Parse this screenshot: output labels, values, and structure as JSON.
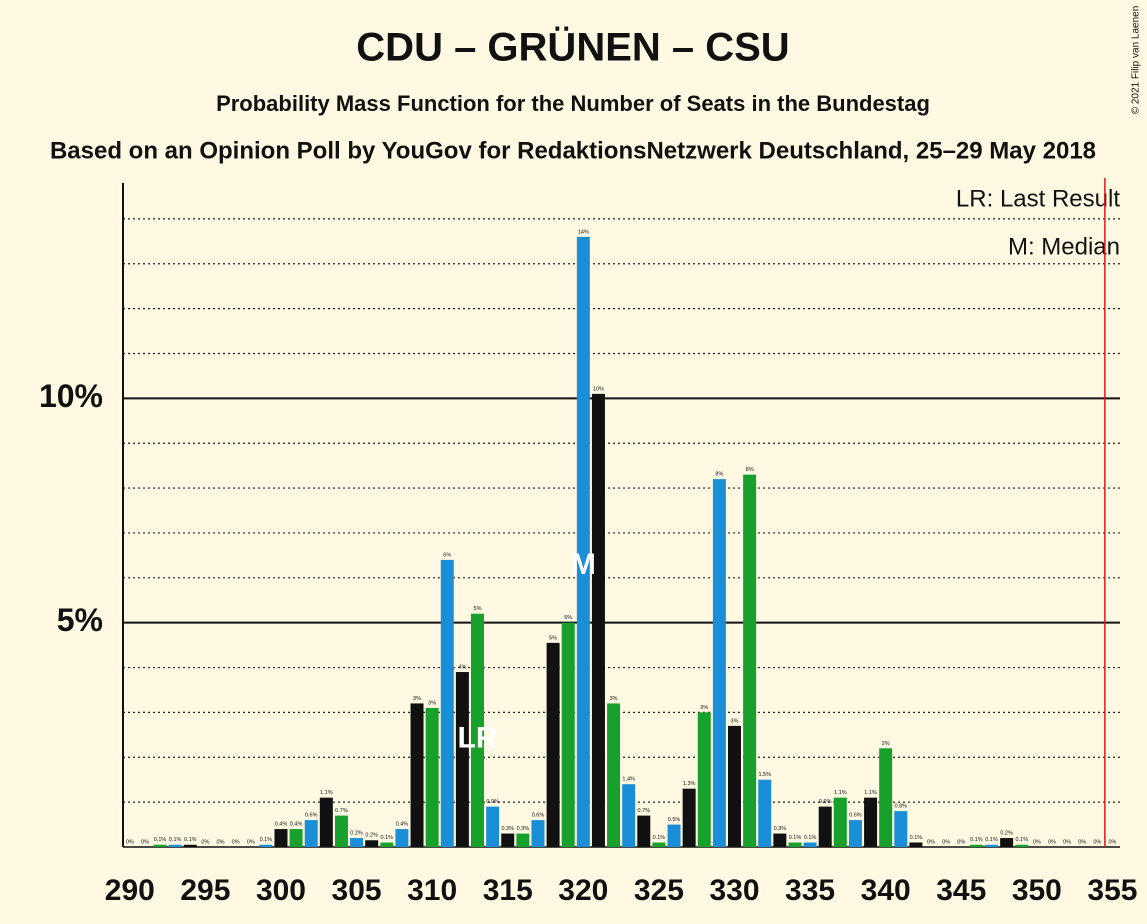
{
  "chart_data": {
    "type": "bar",
    "title": "CDU – GRÜNEN – CSU",
    "subtitle": "Probability Mass Function for the Number of Seats in the Bundestag",
    "source": "Based on an Opinion Poll by YouGov for RedaktionsNetzwerk Deutschland, 25–29 May 2018",
    "copyright": "© 2021 Filip van Laenen",
    "legend": [
      "LR: Last Result",
      "M: Median"
    ],
    "legend_position": "top-right",
    "x": [
      290,
      291,
      292,
      293,
      294,
      295,
      296,
      297,
      298,
      299,
      300,
      301,
      302,
      303,
      304,
      305,
      306,
      307,
      308,
      309,
      310,
      311,
      312,
      313,
      314,
      315,
      316,
      317,
      318,
      319,
      320,
      321,
      322,
      323,
      324,
      325,
      326,
      327,
      328,
      329,
      330,
      331,
      332,
      333,
      334,
      335,
      336,
      337,
      338,
      339,
      340,
      341,
      342,
      343,
      344,
      345,
      346,
      347,
      348,
      349,
      350,
      351,
      352,
      353,
      354,
      355
    ],
    "values": [
      0,
      0,
      0.05,
      0.05,
      0.05,
      0,
      0,
      0,
      0,
      0.05,
      0.4,
      0.4,
      0.6,
      1.1,
      0.7,
      0.2,
      0.15,
      0.1,
      0.4,
      3.2,
      3.1,
      6.4,
      3.9,
      5.2,
      0.9,
      0.3,
      0.3,
      0.6,
      4.55,
      5.0,
      13.6,
      10.1,
      3.2,
      1.4,
      0.7,
      0.1,
      0.5,
      1.3,
      3.0,
      8.2,
      2.7,
      8.3,
      1.5,
      0.3,
      0.1,
      0.1,
      0.9,
      1.1,
      0.6,
      1.1,
      2.2,
      0.8,
      0.1,
      0,
      0,
      0,
      0.05,
      0.05,
      0.2,
      0.05,
      0,
      0,
      0,
      0,
      0,
      0
    ],
    "value_labels": [
      "0%",
      "0%",
      "0.1%",
      "0.1%",
      "0.1%",
      "0%",
      "0%",
      "0%",
      "0%",
      "0.1%",
      "0.4%",
      "0.4%",
      "0.6%",
      "1.1%",
      "0.7%",
      "0.2%",
      "0.2%",
      "0.1%",
      "0.4%",
      "3%",
      "3%",
      "6%",
      "4%",
      "5%",
      "0.9%",
      "0.3%",
      "0.3%",
      "0.6%",
      "5%",
      "5%",
      "14%",
      "10%",
      "3%",
      "1.4%",
      "0.7%",
      "0.1%",
      "0.5%",
      "1.3%",
      "3%",
      "8%",
      "3%",
      "8%",
      "1.5%",
      "0.3%",
      "0.1%",
      "0.1%",
      "0.9%",
      "1.1%",
      "0.6%",
      "1.1%",
      "2%",
      "0.8%",
      "0.1%",
      "0%",
      "0%",
      "0%",
      "0.1%",
      "0.1%",
      "0.2%",
      "0.1%",
      "0%",
      "0%",
      "0%",
      "0%",
      "0%",
      "0%"
    ],
    "colors": [
      "#111111",
      "#18a02c",
      "#1a8fd8"
    ],
    "color_cycle_start": 300,
    "markers": [
      {
        "label": "LR",
        "x": 313
      },
      {
        "label": "M",
        "x": 320
      }
    ],
    "threshold_line": {
      "value": 354.5,
      "color": "#e0161b"
    },
    "xlim": [
      289.55,
      355.5
    ],
    "xticks": [
      290,
      295,
      300,
      305,
      310,
      315,
      320,
      325,
      330,
      335,
      340,
      345,
      350,
      355
    ],
    "ylim": [
      0,
      14.8
    ],
    "yticks": [
      {
        "value": 5,
        "label": "5%"
      },
      {
        "value": 10,
        "label": "10%"
      }
    ],
    "minor_gridlines": [
      1,
      2,
      3,
      4,
      6,
      7,
      8,
      9,
      11,
      12,
      13,
      14
    ],
    "grid": true
  }
}
